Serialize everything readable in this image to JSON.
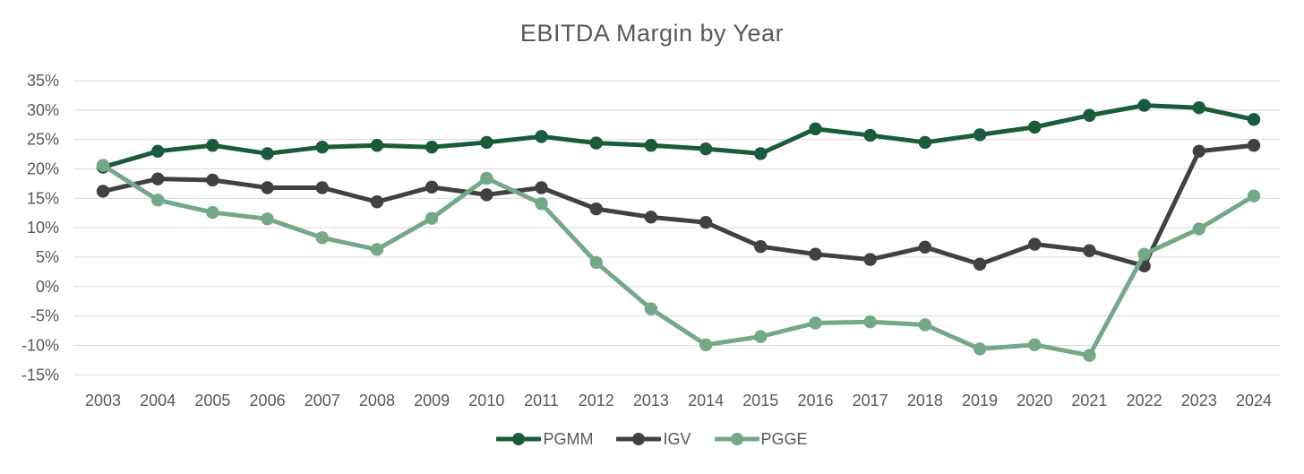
{
  "chart_data": {
    "type": "line",
    "title": "EBITDA Margin by Year",
    "x": [
      2003,
      2004,
      2005,
      2006,
      2007,
      2008,
      2009,
      2010,
      2011,
      2012,
      2013,
      2014,
      2015,
      2016,
      2017,
      2018,
      2019,
      2020,
      2021,
      2022,
      2023,
      2024
    ],
    "series": [
      {
        "name": "PGMM",
        "color": "#195b3b",
        "values": [
          20.3,
          23.0,
          24.0,
          22.6,
          23.7,
          24.0,
          23.7,
          24.5,
          25.5,
          24.4,
          24.0,
          23.4,
          22.6,
          26.8,
          25.7,
          24.5,
          25.8,
          27.1,
          29.1,
          30.8,
          30.4,
          28.4
        ]
      },
      {
        "name": "IGV",
        "color": "#414141",
        "values": [
          16.2,
          18.3,
          18.1,
          16.8,
          16.8,
          14.4,
          16.9,
          15.6,
          16.8,
          13.2,
          11.8,
          10.9,
          6.8,
          5.5,
          4.6,
          6.7,
          3.8,
          7.2,
          6.1,
          3.5,
          23.0,
          24.0
        ]
      },
      {
        "name": "PGGE",
        "color": "#74a888",
        "values": [
          20.6,
          14.7,
          12.6,
          11.5,
          8.3,
          6.3,
          11.6,
          18.4,
          14.1,
          4.1,
          -3.8,
          -9.9,
          -8.5,
          -6.2,
          -6.0,
          -6.5,
          -10.6,
          -9.9,
          -11.7,
          5.5,
          9.8,
          15.4
        ]
      }
    ],
    "xlabel": "",
    "ylabel": "",
    "ylim": [
      -15,
      35
    ],
    "ytick_step": 5,
    "ytick_suffix": "%",
    "grid": true,
    "grid_color": "#d9d9d9",
    "axis_text_color": "#595959",
    "background_color": "#ffffff",
    "legend_position": "bottom"
  }
}
